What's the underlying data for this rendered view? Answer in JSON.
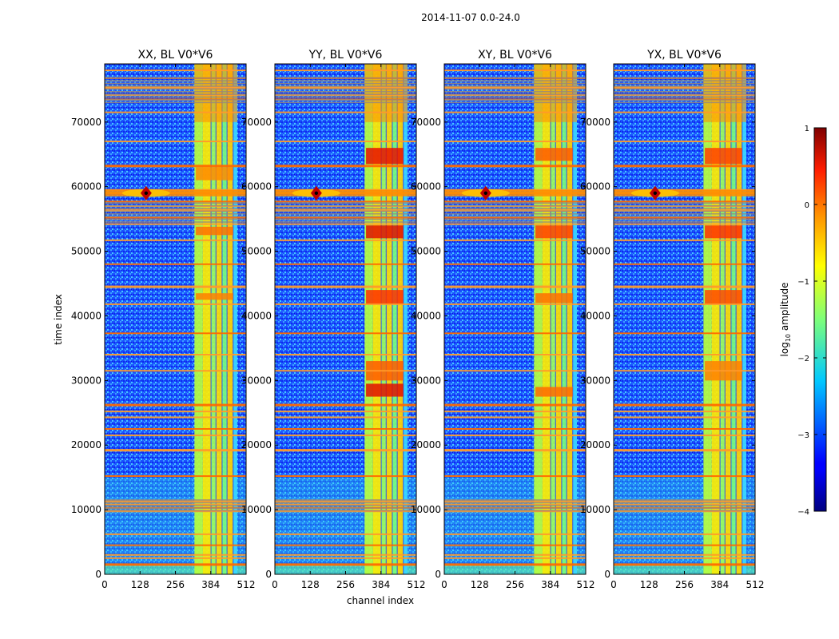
{
  "figure_title": "2014-11-07 0.0-24.0",
  "chart_data": {
    "type": "heatmap",
    "xlabel": "channel index",
    "ylabel": "time index",
    "xlim": [
      0,
      512
    ],
    "ylim": [
      0,
      79000
    ],
    "xticks": [
      0,
      128,
      256,
      384,
      512
    ],
    "yticks": [
      0,
      10000,
      20000,
      30000,
      40000,
      50000,
      60000,
      70000
    ],
    "colorbar": {
      "label": "log10 amplitude",
      "label_main": "log",
      "label_sub": "10",
      "label_tail": " amplitude",
      "range": [
        -4,
        1
      ],
      "ticks": [
        1,
        0,
        -1,
        -2,
        -3,
        -4
      ],
      "tick_labels": [
        "1",
        "0",
        "−1",
        "−2",
        "−3",
        "−4"
      ],
      "colormap": "jet"
    },
    "panels": [
      {
        "title": "XX, BL V0*V6",
        "pol": "XX"
      },
      {
        "title": "YY, BL V0*V6",
        "pol": "YY"
      },
      {
        "title": "XY, BL V0*V6",
        "pol": "XY"
      },
      {
        "title": "YX, BL V0*V6",
        "pol": "YX"
      }
    ],
    "features": {
      "rfi_channel_band": [
        325,
        480
      ],
      "rfi_time_rows": [
        1500,
        2500,
        3000,
        4500,
        6200,
        9800,
        10300,
        10800,
        11300,
        15200,
        19200,
        21500,
        22500,
        24300,
        25200,
        26200,
        31500,
        34000,
        37300,
        41800,
        44500,
        48000,
        51700,
        54200,
        55200,
        56300,
        57000,
        57700,
        59000,
        59500,
        63200,
        67000,
        71500,
        73500,
        74200,
        75300,
        76800,
        78000
      ],
      "burst_center": [
        150,
        59000
      ]
    }
  }
}
